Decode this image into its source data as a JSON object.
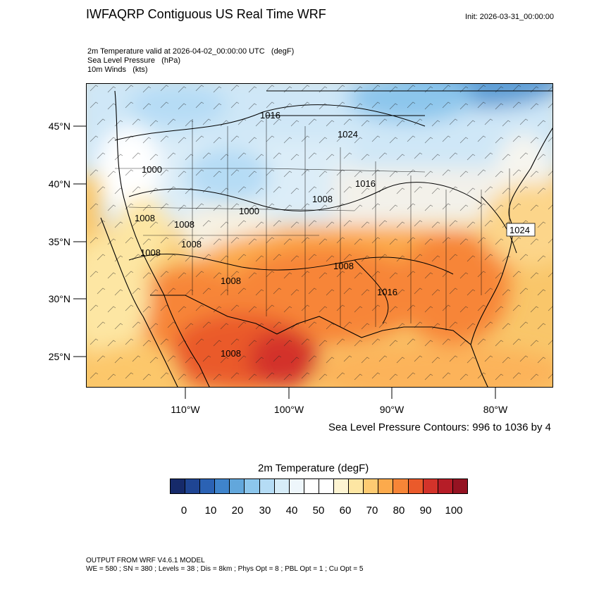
{
  "title": "IWFAQRP Contiguous US Real Time WRF",
  "init": "Init: 2026-03-31_00:00:00",
  "fields": [
    {
      "name": "2m Temperature valid at 2026-04-02_00:00:00 UTC",
      "units": "(degF)"
    },
    {
      "name": "Sea Level Pressure",
      "units": "(hPa)"
    },
    {
      "name": "10m Winds",
      "units": "(kts)"
    }
  ],
  "lat_labels": [
    "45°N",
    "40°N",
    "35°N",
    "30°N",
    "25°N"
  ],
  "lon_labels": [
    "110°W",
    "100°W",
    "90°W",
    "80°W"
  ],
  "contour_note": "Sea Level Pressure Contours: 996 to 1036 by 4",
  "pressure_labels": [
    "1016",
    "1024",
    "1000",
    "1016",
    "1008",
    "1000",
    "1008",
    "1008",
    "1008",
    "1008",
    "1008",
    "1008",
    "1016",
    "1024",
    "1008"
  ],
  "colorbar": {
    "title": "2m Temperature  (degF)",
    "colors": [
      "#162a6a",
      "#1f4593",
      "#2b62b4",
      "#3f84cc",
      "#62a7dc",
      "#8cc6ec",
      "#b5dcf5",
      "#d6ecf8",
      "#eef6fb",
      "#ffffff",
      "#ffffff",
      "#fdf4d2",
      "#fde6a3",
      "#fdcb72",
      "#fcaa4c",
      "#f78537",
      "#ea5a2b",
      "#d3332a",
      "#b61d27",
      "#951322"
    ],
    "tick_labels": [
      "0",
      "10",
      "20",
      "30",
      "40",
      "50",
      "60",
      "70",
      "80",
      "90",
      "100"
    ]
  },
  "footer": {
    "line1": "OUTPUT FROM WRF V4.6.1 MODEL",
    "line2": "WE = 580 ; SN = 380 ; Levels = 38 ; Dis = 8km ; Phys Opt = 8 ; PBL Opt = 1 ; Cu Opt = 5"
  }
}
